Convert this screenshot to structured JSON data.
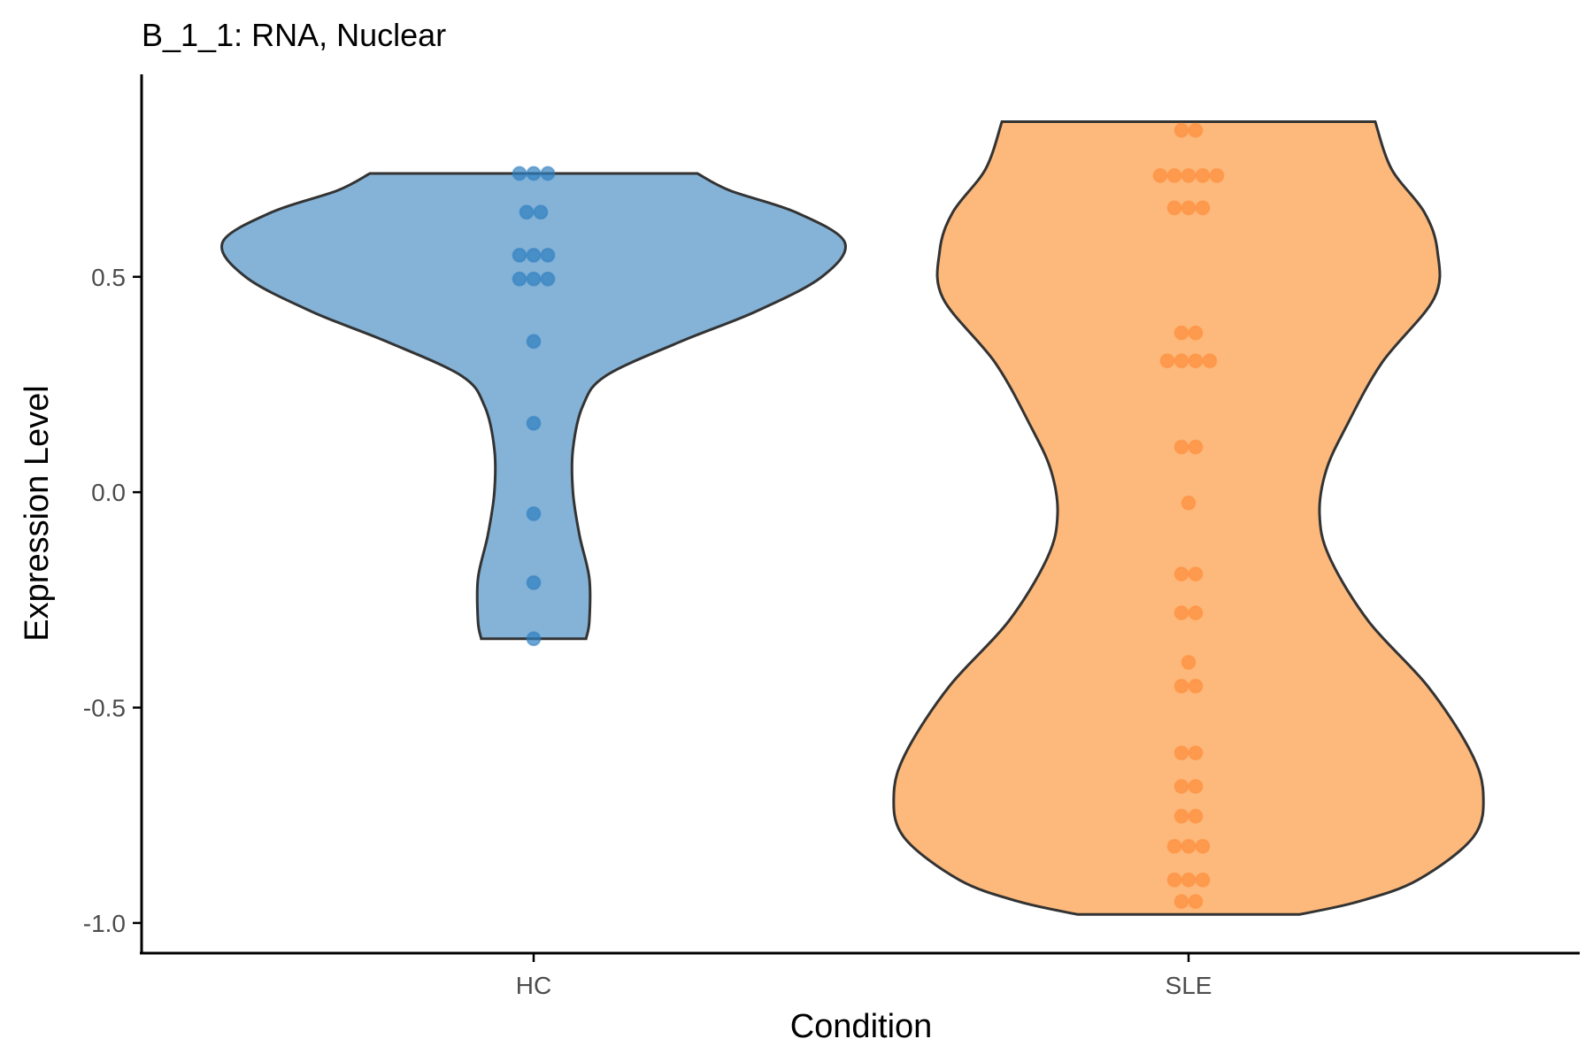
{
  "chart_data": {
    "type": "violin",
    "title": "B_1_1: RNA, Nuclear",
    "xlabel": "Condition",
    "ylabel": "Expression Level",
    "categories": [
      "HC",
      "SLE"
    ],
    "ylim": [
      -1.07,
      0.97
    ],
    "yticks": [
      0.5,
      0.0,
      -0.5,
      -1.0
    ],
    "ytick_labels": [
      "0.5",
      "0.0",
      "-0.5",
      "-1.0"
    ],
    "grid": false,
    "legend": "none",
    "series": [
      {
        "category": "HC",
        "fill_color": "#84b3d7",
        "dot_color": "#2f7fc1",
        "range": [
          -0.34,
          0.74
        ],
        "density": [
          [
            -0.34,
            0.16
          ],
          [
            -0.3,
            0.17
          ],
          [
            -0.2,
            0.17
          ],
          [
            -0.1,
            0.14
          ],
          [
            0.0,
            0.12
          ],
          [
            0.1,
            0.12
          ],
          [
            0.2,
            0.15
          ],
          [
            0.27,
            0.22
          ],
          [
            0.35,
            0.45
          ],
          [
            0.42,
            0.68
          ],
          [
            0.5,
            0.88
          ],
          [
            0.58,
            0.95
          ],
          [
            0.65,
            0.8
          ],
          [
            0.7,
            0.6
          ],
          [
            0.74,
            0.5
          ]
        ],
        "points": [
          0.74,
          0.74,
          0.74,
          0.65,
          0.65,
          0.55,
          0.55,
          0.55,
          0.495,
          0.495,
          0.495,
          0.35,
          0.16,
          -0.05,
          -0.21,
          -0.34
        ]
      },
      {
        "category": "SLE",
        "fill_color": "#fdb97b",
        "dot_color": "#fd8d3c",
        "range": [
          -0.98,
          0.86
        ],
        "density": [
          [
            -0.98,
            0.34
          ],
          [
            -0.95,
            0.52
          ],
          [
            -0.9,
            0.7
          ],
          [
            -0.8,
            0.87
          ],
          [
            -0.7,
            0.9
          ],
          [
            -0.6,
            0.86
          ],
          [
            -0.45,
            0.73
          ],
          [
            -0.3,
            0.55
          ],
          [
            -0.15,
            0.43
          ],
          [
            -0.05,
            0.4
          ],
          [
            0.05,
            0.42
          ],
          [
            0.15,
            0.48
          ],
          [
            0.3,
            0.59
          ],
          [
            0.45,
            0.75
          ],
          [
            0.56,
            0.76
          ],
          [
            0.65,
            0.72
          ],
          [
            0.75,
            0.62
          ],
          [
            0.86,
            0.57
          ]
        ],
        "points": [
          0.84,
          0.84,
          0.735,
          0.735,
          0.735,
          0.735,
          0.735,
          0.66,
          0.66,
          0.66,
          0.37,
          0.37,
          0.305,
          0.305,
          0.305,
          0.305,
          0.105,
          0.105,
          -0.025,
          -0.19,
          -0.19,
          -0.28,
          -0.28,
          -0.395,
          -0.45,
          -0.45,
          -0.605,
          -0.605,
          -0.683,
          -0.683,
          -0.752,
          -0.752,
          -0.822,
          -0.822,
          -0.822,
          -0.9,
          -0.9,
          -0.9,
          -0.95,
          -0.95
        ]
      }
    ]
  }
}
